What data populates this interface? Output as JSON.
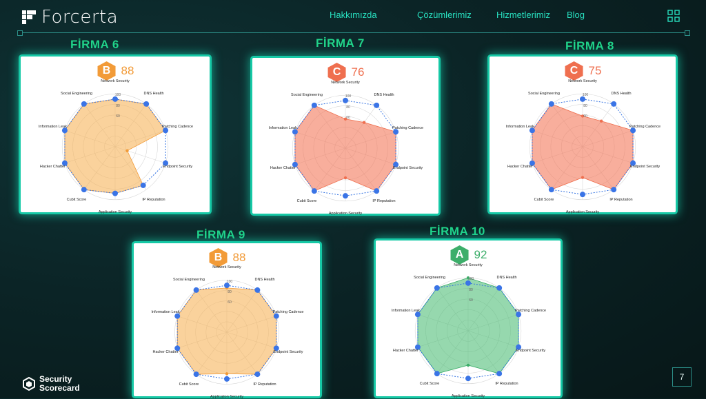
{
  "header": {
    "brand": "Forcerta",
    "nav": [
      "Hakkımızda",
      "Çözümlerimiz",
      "Hizmetlerimiz",
      "Blog"
    ]
  },
  "axes": [
    "Network Security",
    "DNS Health",
    "Patching Cadence",
    "Endpoint Security",
    "IP Reputation",
    "Application Security",
    "Cubit Score",
    "Hacker Chatter",
    "Information Leak",
    "Social Engineering"
  ],
  "rings": [
    "100",
    "80",
    "60"
  ],
  "firms": [
    {
      "title": "FİRMA 6",
      "grade": "B",
      "score": "88",
      "color": "#f29b38",
      "fill": "rgba(247,180,90,0.6)",
      "values": [
        90,
        100,
        100,
        100,
        90,
        88,
        100,
        100,
        100,
        100
      ],
      "actual": [
        90,
        100,
        100,
        24,
        90,
        88,
        100,
        100,
        100,
        100
      ]
    },
    {
      "title": "FİRMA 7",
      "grade": "C",
      "score": "76",
      "color": "#ef6f4f",
      "fill": "rgba(243,120,90,0.6)",
      "values": [
        90,
        100,
        100,
        100,
        100,
        90,
        100,
        100,
        100,
        100
      ],
      "actual": [
        55,
        60,
        100,
        100,
        100,
        56,
        100,
        100,
        100,
        100
      ]
    },
    {
      "title": "FİRMA 8",
      "grade": "C",
      "score": "75",
      "color": "#ef6f4f",
      "fill": "rgba(243,120,90,0.6)",
      "values": [
        90,
        100,
        100,
        100,
        100,
        90,
        100,
        100,
        100,
        100
      ],
      "actual": [
        58,
        60,
        100,
        100,
        100,
        58,
        100,
        100,
        100,
        100
      ]
    },
    {
      "title": "FİRMA 9",
      "grade": "B",
      "score": "88",
      "color": "#f29b38",
      "fill": "rgba(247,180,90,0.6)",
      "values": [
        90,
        100,
        100,
        100,
        100,
        90,
        100,
        100,
        100,
        100
      ],
      "actual": [
        85,
        100,
        100,
        100,
        100,
        80,
        100,
        100,
        100,
        100
      ]
    },
    {
      "title": "FİRMA 10",
      "grade": "A",
      "score": "92",
      "color": "#3dae6a",
      "fill": "rgba(80,190,120,0.6)",
      "values": [
        90,
        100,
        100,
        100,
        100,
        90,
        100,
        100,
        100,
        100
      ],
      "actual": [
        100,
        100,
        100,
        100,
        100,
        65,
        100,
        100,
        100,
        100
      ]
    }
  ],
  "footer": {
    "brand_line1": "Security",
    "brand_line2": "Scorecard",
    "page": "7"
  }
}
